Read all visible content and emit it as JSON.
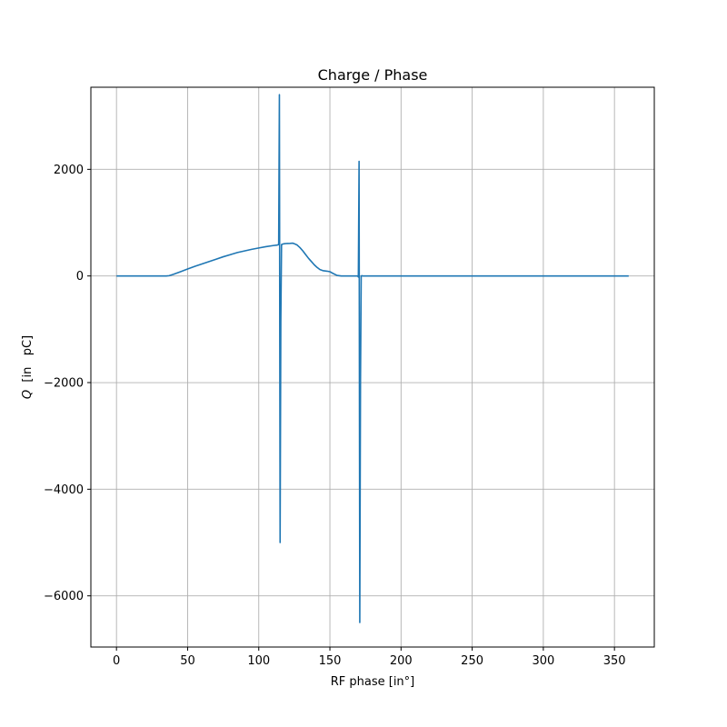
{
  "chart_data": {
    "type": "line",
    "title": "Charge / Phase",
    "xlabel": "RF phase [in°]",
    "ylabel_italic": "Q",
    "ylabel_rest": "  [in   pC]",
    "xlim": [
      -18,
      378
    ],
    "ylim": [
      -6960,
      3540
    ],
    "xticks": [
      0,
      50,
      100,
      150,
      200,
      250,
      300,
      350
    ],
    "xtick_labels": [
      "0",
      "50",
      "100",
      "150",
      "200",
      "250",
      "300",
      "350"
    ],
    "yticks": [
      -6000,
      -4000,
      -2000,
      0,
      2000
    ],
    "ytick_labels": [
      "−6000",
      "−4000",
      "−2000",
      "0",
      "2000"
    ],
    "grid": true,
    "line_color": "#1f77b4",
    "series": [
      {
        "x": [
          0,
          10,
          20,
          30,
          35,
          37,
          40,
          45,
          50,
          55,
          60,
          65,
          70,
          75,
          80,
          85,
          90,
          95,
          100,
          105,
          110,
          113,
          114,
          114.5,
          115,
          115.5,
          116,
          117,
          118,
          120,
          122,
          124,
          125,
          127,
          129,
          131,
          133,
          135,
          137,
          139,
          141,
          143,
          145,
          148,
          150,
          152,
          155,
          158,
          160,
          165,
          168,
          169.5,
          170,
          170.5,
          171,
          171.5,
          172,
          172.5,
          173,
          175,
          180,
          190,
          200,
          210,
          220,
          230,
          240,
          250,
          260,
          270,
          280,
          290,
          300,
          310,
          320,
          330,
          340,
          350,
          360
        ],
        "y": [
          0,
          0,
          0,
          0,
          0,
          5,
          30,
          80,
          130,
          180,
          225,
          270,
          315,
          360,
          400,
          440,
          470,
          500,
          525,
          550,
          570,
          580,
          590,
          3400,
          -5000,
          -850,
          590,
          600,
          605,
          610,
          612,
          615,
          605,
          580,
          530,
          470,
          400,
          330,
          270,
          210,
          160,
          120,
          100,
          90,
          80,
          50,
          10,
          0,
          0,
          0,
          0,
          0,
          -20,
          2150,
          -6500,
          -2000,
          0,
          5,
          0,
          0,
          0,
          0,
          0,
          0,
          0,
          0,
          0,
          0,
          0,
          0,
          0,
          0,
          0,
          0,
          0,
          0,
          0,
          0,
          0
        ]
      }
    ]
  }
}
